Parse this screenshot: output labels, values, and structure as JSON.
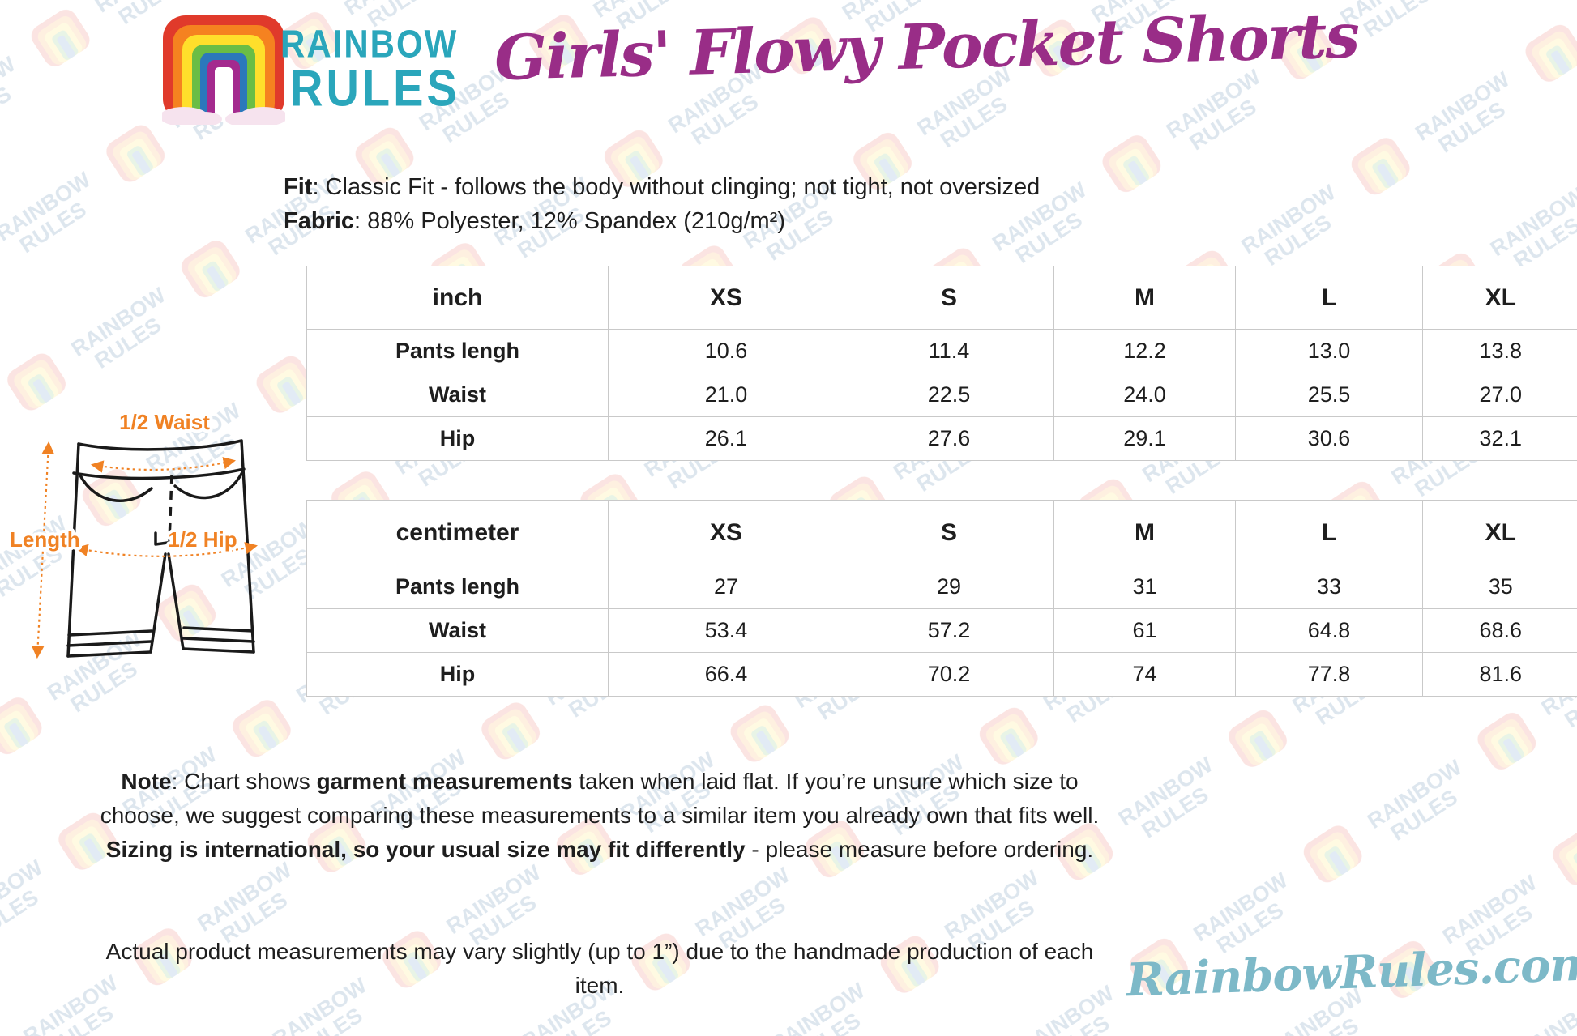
{
  "brand": {
    "line1": "RAINBOW",
    "line2": "RULES"
  },
  "header": {
    "title": "Girls' Flowy Pocket Shorts"
  },
  "description": {
    "fit_label": "Fit",
    "fit_rest": ": Classic Fit - follows the body without clinging; not tight, not oversized",
    "fabric_label": "Fabric",
    "fabric_rest": ": 88% Polyester, 12% Spandex (210g/m²)"
  },
  "diagram": {
    "waist_label": "1/2 Waist",
    "length_label": "Length",
    "hip_label": "1/2 Hip"
  },
  "tables": [
    {
      "unit": "inch",
      "columns": [
        "XS",
        "S",
        "M",
        "L",
        "XL"
      ],
      "rows": [
        {
          "label": "Pants lengh",
          "values": [
            "10.6",
            "11.4",
            "12.2",
            "13.0",
            "13.8"
          ]
        },
        {
          "label": "Waist",
          "values": [
            "21.0",
            "22.5",
            "24.0",
            "25.5",
            "27.0"
          ]
        },
        {
          "label": "Hip",
          "values": [
            "26.1",
            "27.6",
            "29.1",
            "30.6",
            "32.1"
          ]
        }
      ]
    },
    {
      "unit": "centimeter",
      "columns": [
        "XS",
        "S",
        "M",
        "L",
        "XL"
      ],
      "rows": [
        {
          "label": "Pants lengh",
          "values": [
            "27",
            "29",
            "31",
            "33",
            "35"
          ]
        },
        {
          "label": "Waist",
          "values": [
            "53.4",
            "57.2",
            "61",
            "64.8",
            "68.6"
          ]
        },
        {
          "label": "Hip",
          "values": [
            "66.4",
            "70.2",
            "74",
            "77.8",
            "81.6"
          ]
        }
      ]
    }
  ],
  "notes": {
    "note1_parts": [
      "Note",
      ": Chart shows ",
      "garment measurements",
      " taken when laid flat. If you’re unsure which size to choose, we suggest comparing these measurements to a similar item you already own that fits well. ",
      "Sizing is international, so your usual size may fit differently",
      " - please measure before ordering."
    ],
    "note2": "Actual product measurements may vary slightly (up to 1”) due to the handmade production of each item."
  },
  "footer": {
    "site": "RainbowRules.com"
  },
  "colors": {
    "title_purple": "#992D87",
    "brand_teal": "#2AA6BB",
    "footer_teal": "#7DB9C8",
    "diagram_orange": "#F08224",
    "table_border": "#C9C9C9",
    "text": "#1E1E1E"
  }
}
